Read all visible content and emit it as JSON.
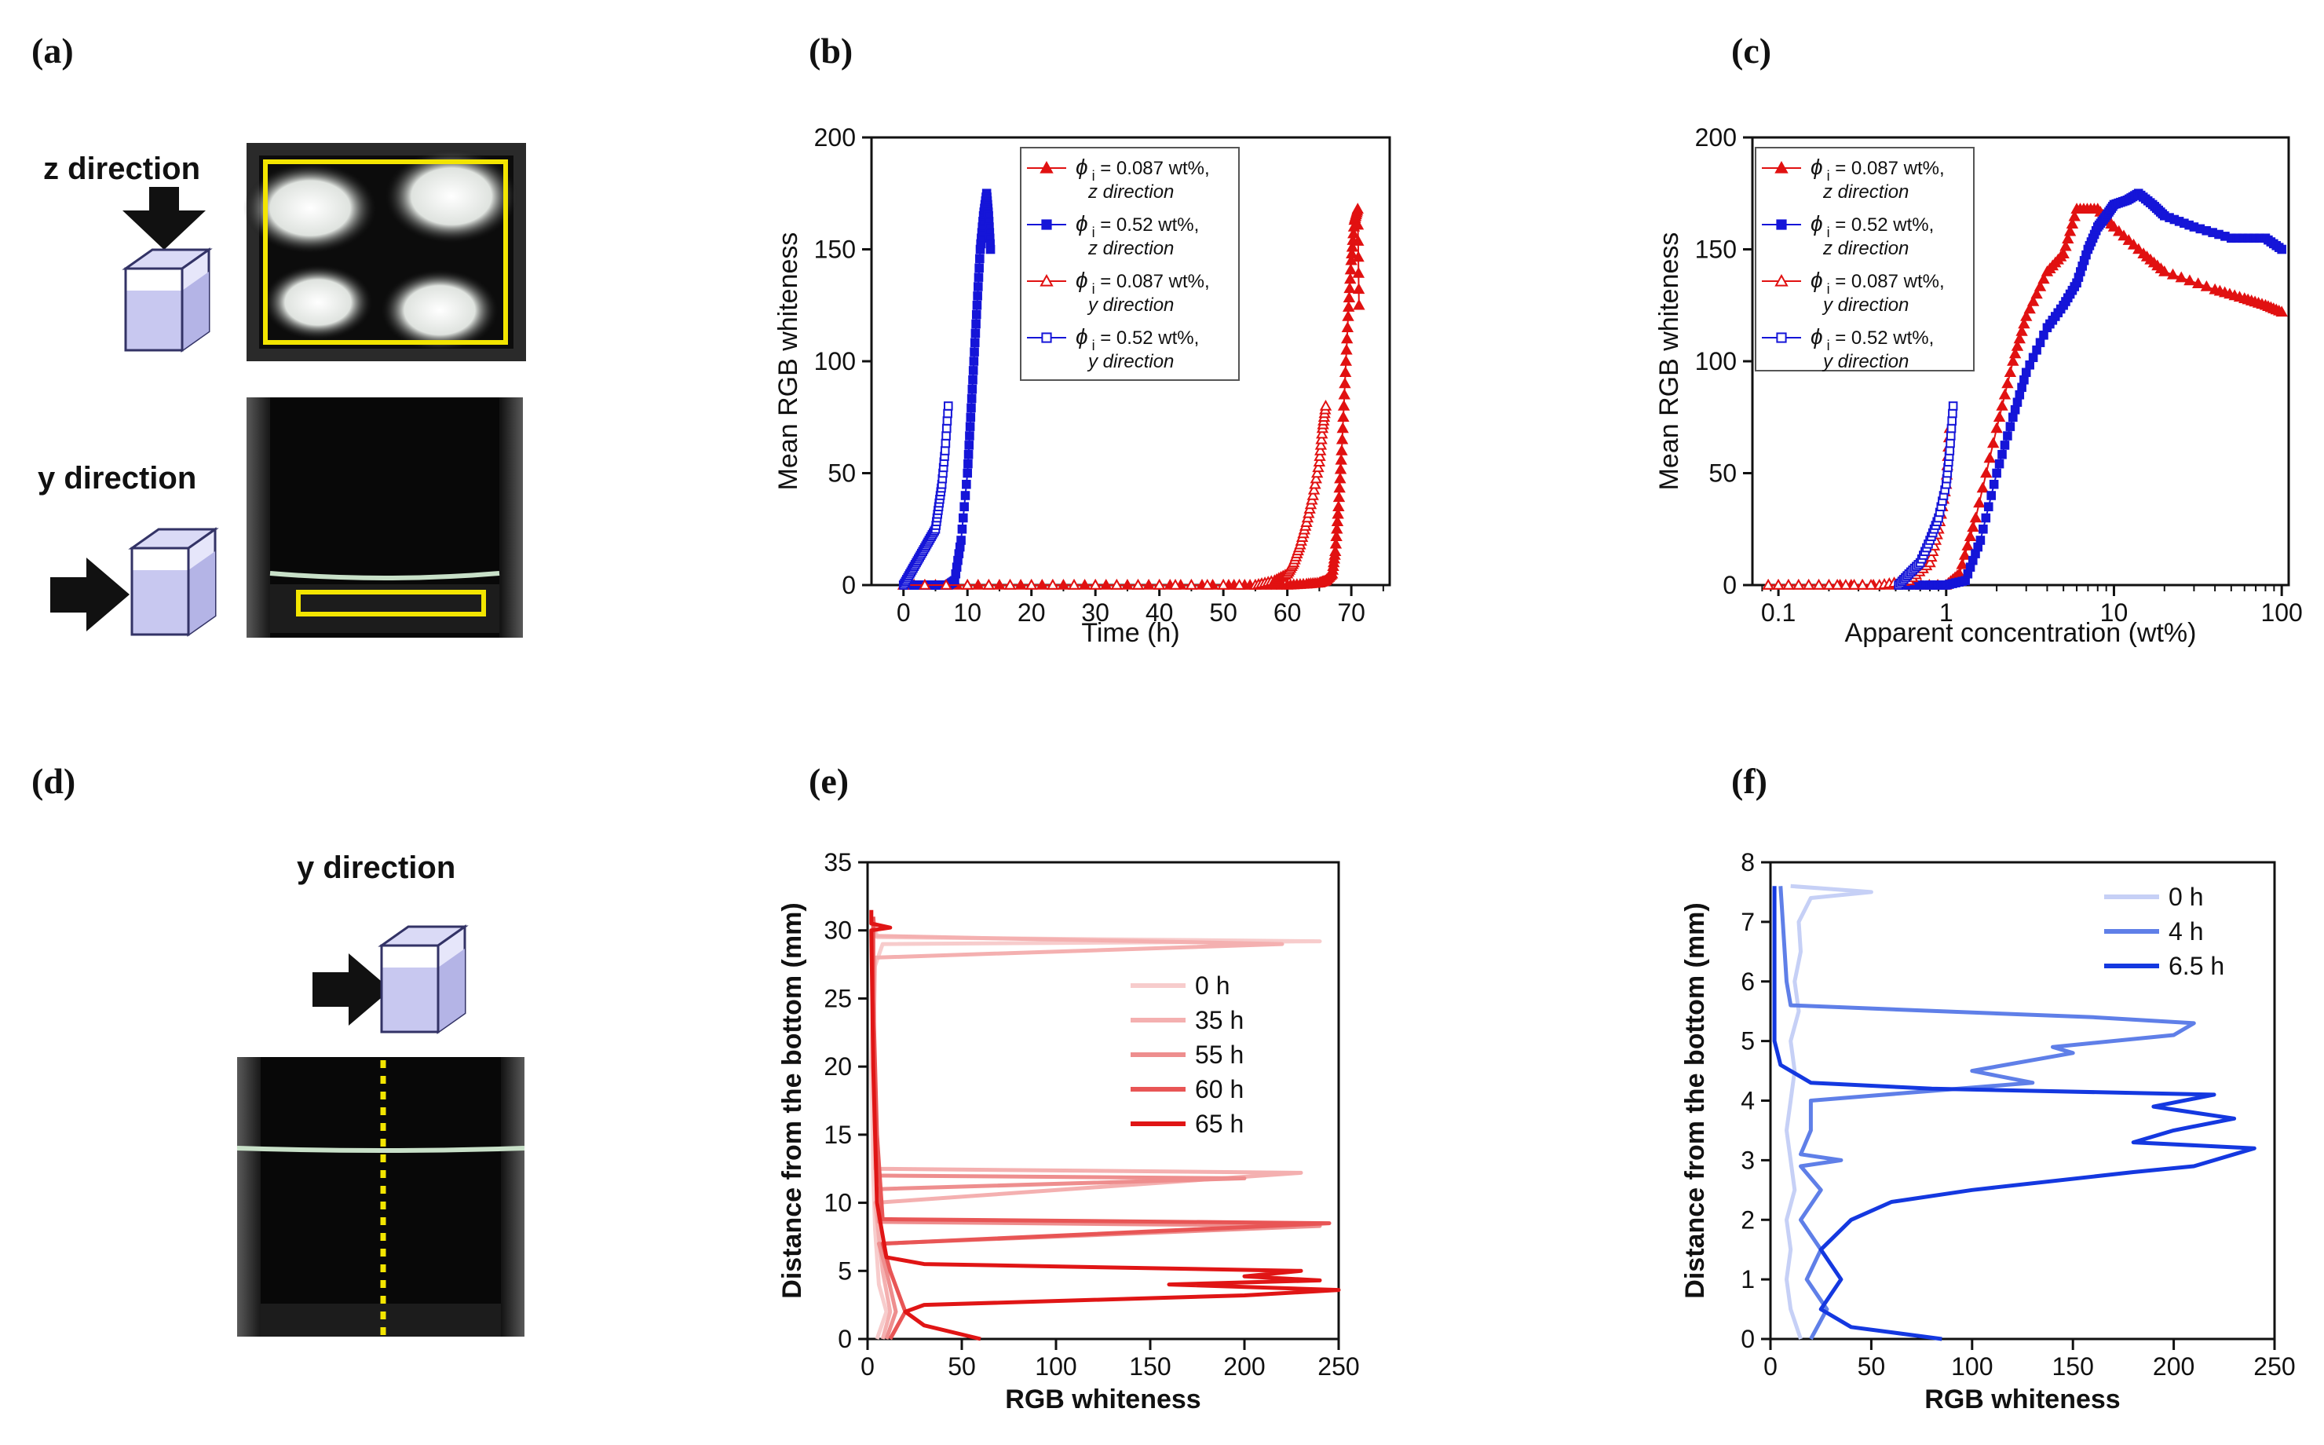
{
  "panel_labels": [
    "(a)",
    "(b)",
    "(c)",
    "(d)",
    "(e)",
    "(f)"
  ],
  "photos": {
    "a_top_label": "z direction",
    "a_bottom_label": "y direction",
    "d_label": "y direction",
    "box_color": "#c8c8f0",
    "arrow_color": "#111111",
    "highlight_color": "#f3e500"
  },
  "chart_data": [
    {
      "id": "b",
      "type": "scatter",
      "title": "",
      "xlabel": "Time (h)",
      "ylabel": "Mean RGB whiteness",
      "xlim": [
        -5,
        76
      ],
      "ylim": [
        0,
        200
      ],
      "xticks": [
        0,
        10,
        20,
        30,
        40,
        50,
        60,
        70
      ],
      "yticks": [
        0,
        50,
        100,
        150,
        200
      ],
      "legend": [
        {
          "phi": "ϕ",
          "sub": "i",
          "text": " = 0.087 wt%,",
          "dir": "z direction",
          "color": "#e11111",
          "marker": "triangle-filled"
        },
        {
          "phi": "ϕ",
          "sub": "i",
          "text": " = 0.52 wt%,",
          "dir": "z direction",
          "color": "#1515d8",
          "marker": "square-filled"
        },
        {
          "phi": "ϕ",
          "sub": "i",
          "text": " = 0.087 wt%,",
          "dir": "y direction",
          "color": "#e11111",
          "marker": "triangle-open"
        },
        {
          "phi": "ϕ",
          "sub": "i",
          "text": " = 0.52 wt%,",
          "dir": "y direction",
          "color": "#1515d8",
          "marker": "square-open"
        }
      ],
      "series": [
        {
          "name": "0.087 wt% z",
          "color": "#e11111",
          "marker": "triangle-filled",
          "x": [
            0,
            10,
            20,
            30,
            40,
            50,
            55,
            60,
            63,
            65,
            66,
            67,
            67.5,
            68,
            68.5,
            69,
            69.5,
            70,
            70.5,
            71,
            71.2
          ],
          "y": [
            0,
            0,
            0,
            0,
            0,
            0,
            0,
            0,
            0.5,
            1,
            2,
            5,
            15,
            35,
            60,
            90,
            120,
            145,
            163,
            168,
            125
          ]
        },
        {
          "name": "0.52 wt% z",
          "color": "#1515d8",
          "marker": "square-filled",
          "x": [
            0,
            2,
            4,
            6,
            7,
            8,
            9,
            10,
            10.5,
            11,
            11.5,
            12,
            12.5,
            13,
            13.3,
            13.6
          ],
          "y": [
            0,
            0,
            0,
            0,
            0,
            2,
            20,
            50,
            75,
            100,
            125,
            150,
            165,
            175,
            165,
            150
          ]
        },
        {
          "name": "0.087 wt% y",
          "color": "#e11111",
          "marker": "triangle-open",
          "x": [
            0,
            20,
            40,
            55,
            58,
            60,
            61,
            62,
            63,
            64,
            65,
            65.5,
            66
          ],
          "y": [
            0,
            0,
            0,
            0,
            2,
            5,
            10,
            18,
            28,
            40,
            55,
            70,
            80
          ]
        },
        {
          "name": "0.52 wt% y",
          "color": "#1515d8",
          "marker": "square-open",
          "x": [
            0,
            1,
            2,
            3,
            4,
            5,
            5.5,
            6,
            6.5,
            7
          ],
          "y": [
            0,
            5,
            10,
            15,
            20,
            25,
            35,
            45,
            60,
            80
          ]
        }
      ]
    },
    {
      "id": "c",
      "type": "scatter",
      "title": "",
      "xlabel": "Apparent concentration (wt%)",
      "ylabel": "Mean RGB whiteness",
      "xscale": "log",
      "xlim": [
        0.07,
        110
      ],
      "ylim": [
        0,
        200
      ],
      "xticks": [
        0.1,
        1,
        10,
        100
      ],
      "xtick_labels": [
        "0.1",
        "1",
        "10",
        "100"
      ],
      "yticks": [
        0,
        50,
        100,
        150,
        200
      ],
      "legend": [
        {
          "phi": "ϕ",
          "sub": "i",
          "text": " = 0.087 wt%,",
          "dir": "z direction",
          "color": "#e11111",
          "marker": "triangle-filled"
        },
        {
          "phi": "ϕ",
          "sub": "i",
          "text": " = 0.52 wt%,",
          "dir": "z direction",
          "color": "#1515d8",
          "marker": "square-filled"
        },
        {
          "phi": "ϕ",
          "sub": "i",
          "text": " = 0.087 wt%,",
          "dir": "y direction",
          "color": "#e11111",
          "marker": "triangle-open"
        },
        {
          "phi": "ϕ",
          "sub": "i",
          "text": " = 0.52 wt%,",
          "dir": "y direction",
          "color": "#1515d8",
          "marker": "square-open"
        }
      ],
      "series": [
        {
          "name": "0.087 wt% z",
          "color": "#e11111",
          "marker": "triangle-filled",
          "x": [
            0.087,
            0.2,
            0.5,
            1.0,
            1.2,
            1.5,
            2,
            2.5,
            3,
            4,
            5,
            6,
            8,
            10,
            15,
            20,
            40,
            60,
            80,
            100
          ],
          "y": [
            0,
            0,
            0,
            0,
            5,
            30,
            70,
            100,
            120,
            140,
            148,
            168,
            168,
            160,
            148,
            140,
            132,
            128,
            125,
            122
          ]
        },
        {
          "name": "0.52 wt% z",
          "color": "#1515d8",
          "marker": "square-filled",
          "x": [
            0.52,
            0.8,
            1.0,
            1.3,
            1.6,
            2,
            2.5,
            3,
            4,
            5,
            6,
            7,
            8,
            9,
            10,
            12,
            14,
            17,
            20,
            30,
            50,
            80,
            100
          ],
          "y": [
            0,
            0,
            0,
            2,
            20,
            50,
            75,
            95,
            115,
            125,
            135,
            150,
            160,
            165,
            170,
            172,
            175,
            170,
            165,
            160,
            155,
            155,
            150
          ]
        },
        {
          "name": "0.087 wt% y",
          "color": "#e11111",
          "marker": "triangle-open",
          "x": [
            0.087,
            0.2,
            0.4,
            0.6,
            0.8,
            0.9,
            1.0,
            1.05
          ],
          "y": [
            0,
            0,
            0,
            2,
            10,
            25,
            45,
            70
          ]
        },
        {
          "name": "0.52 wt% y",
          "color": "#1515d8",
          "marker": "square-open",
          "x": [
            0.52,
            0.6,
            0.7,
            0.8,
            0.9,
            1.0,
            1.05,
            1.1
          ],
          "y": [
            0,
            5,
            10,
            20,
            30,
            45,
            60,
            80
          ]
        }
      ]
    },
    {
      "id": "e",
      "type": "line",
      "title": "",
      "xlabel": "RGB whiteness",
      "ylabel": "Distance from the bottom (mm)",
      "xlim": [
        0,
        250
      ],
      "ylim": [
        0,
        35
      ],
      "xticks": [
        0,
        50,
        100,
        150,
        200,
        250
      ],
      "yticks": [
        0,
        5,
        10,
        15,
        20,
        25,
        30,
        35
      ],
      "legend": [
        {
          "label": "0 h",
          "color": "#f7cccc"
        },
        {
          "label": "35 h",
          "color": "#f4b0b0"
        },
        {
          "label": "55 h",
          "color": "#ee8e8e"
        },
        {
          "label": "60 h",
          "color": "#e85555"
        },
        {
          "label": "65 h",
          "color": "#e01515"
        }
      ],
      "series": [
        {
          "name": "0 h",
          "color": "#f7cccc",
          "points": [
            [
              5,
              0
            ],
            [
              10,
              2
            ],
            [
              6,
              4
            ],
            [
              4,
              8
            ],
            [
              3,
              12
            ],
            [
              2,
              20
            ],
            [
              3,
              27
            ],
            [
              8,
              29
            ],
            [
              240,
              29.2
            ],
            [
              5,
              29.5
            ],
            [
              3,
              31
            ]
          ]
        },
        {
          "name": "35 h",
          "color": "#f4b0b0",
          "points": [
            [
              8,
              0
            ],
            [
              12,
              2
            ],
            [
              8,
              5
            ],
            [
              4,
              10
            ],
            [
              230,
              12.2
            ],
            [
              4,
              12.5
            ],
            [
              3,
              20
            ],
            [
              4,
              28
            ],
            [
              220,
              29
            ],
            [
              4,
              29.6
            ],
            [
              3,
              31
            ]
          ]
        },
        {
          "name": "55 h",
          "color": "#ee8e8e",
          "points": [
            [
              10,
              0
            ],
            [
              15,
              2
            ],
            [
              10,
              5
            ],
            [
              6,
              7
            ],
            [
              240,
              8.3
            ],
            [
              6,
              8.6
            ],
            [
              5,
              11
            ],
            [
              200,
              11.8
            ],
            [
              5,
              12
            ],
            [
              3,
              25
            ],
            [
              3,
              31
            ]
          ]
        },
        {
          "name": "60 h",
          "color": "#e85555",
          "points": [
            [
              12,
              0
            ],
            [
              20,
              2
            ],
            [
              12,
              5
            ],
            [
              8,
              7
            ],
            [
              245,
              8.5
            ],
            [
              8,
              8.8
            ],
            [
              5,
              15
            ],
            [
              3,
              25
            ],
            [
              3,
              31
            ]
          ]
        },
        {
          "name": "65 h",
          "color": "#e01515",
          "points": [
            [
              60,
              0
            ],
            [
              30,
              1
            ],
            [
              20,
              2
            ],
            [
              30,
              2.5
            ],
            [
              200,
              3.2
            ],
            [
              250,
              3.6
            ],
            [
              160,
              4
            ],
            [
              240,
              4.3
            ],
            [
              200,
              4.6
            ],
            [
              230,
              5
            ],
            [
              30,
              5.5
            ],
            [
              10,
              6
            ],
            [
              5,
              10
            ],
            [
              3,
              20
            ],
            [
              2,
              30
            ],
            [
              12,
              30.2
            ],
            [
              2,
              30.5
            ],
            [
              2,
              31.5
            ]
          ]
        }
      ]
    },
    {
      "id": "f",
      "type": "line",
      "title": "",
      "xlabel": "RGB whiteness",
      "ylabel": "Distance from the bottom (mm)",
      "xlim": [
        0,
        250
      ],
      "ylim": [
        0,
        8
      ],
      "xticks": [
        0,
        50,
        100,
        150,
        200,
        250
      ],
      "yticks": [
        0,
        1,
        2,
        3,
        4,
        5,
        6,
        7,
        8
      ],
      "legend": [
        {
          "label": "0 h",
          "color": "#c6d0f6"
        },
        {
          "label": "4 h",
          "color": "#5f7fe8"
        },
        {
          "label": "6.5 h",
          "color": "#1438e0"
        }
      ],
      "series": [
        {
          "name": "0 h",
          "color": "#c6d0f6",
          "points": [
            [
              15,
              0
            ],
            [
              10,
              0.5
            ],
            [
              8,
              1
            ],
            [
              10,
              1.5
            ],
            [
              8,
              2
            ],
            [
              12,
              2.5
            ],
            [
              10,
              3
            ],
            [
              8,
              3.5
            ],
            [
              10,
              4
            ],
            [
              12,
              4.5
            ],
            [
              10,
              5
            ],
            [
              14,
              5.5
            ],
            [
              12,
              6
            ],
            [
              15,
              6.5
            ],
            [
              14,
              7
            ],
            [
              20,
              7.4
            ],
            [
              50,
              7.5
            ],
            [
              10,
              7.6
            ]
          ]
        },
        {
          "name": "4 h",
          "color": "#5f7fe8",
          "points": [
            [
              20,
              0
            ],
            [
              28,
              0.5
            ],
            [
              18,
              1
            ],
            [
              25,
              1.5
            ],
            [
              15,
              2
            ],
            [
              25,
              2.5
            ],
            [
              15,
              2.9
            ],
            [
              35,
              3
            ],
            [
              15,
              3.1
            ],
            [
              20,
              3.5
            ],
            [
              20,
              4
            ],
            [
              130,
              4.3
            ],
            [
              100,
              4.5
            ],
            [
              150,
              4.8
            ],
            [
              140,
              4.9
            ],
            [
              200,
              5.1
            ],
            [
              210,
              5.3
            ],
            [
              160,
              5.4
            ],
            [
              10,
              5.6
            ],
            [
              8,
              6
            ],
            [
              5,
              7.6
            ]
          ]
        },
        {
          "name": "6.5 h",
          "color": "#1438e0",
          "points": [
            [
              85,
              0
            ],
            [
              40,
              0.2
            ],
            [
              25,
              0.5
            ],
            [
              35,
              1
            ],
            [
              25,
              1.5
            ],
            [
              40,
              2
            ],
            [
              60,
              2.3
            ],
            [
              100,
              2.5
            ],
            [
              180,
              2.8
            ],
            [
              210,
              2.9
            ],
            [
              240,
              3.2
            ],
            [
              180,
              3.3
            ],
            [
              200,
              3.5
            ],
            [
              230,
              3.7
            ],
            [
              190,
              3.9
            ],
            [
              220,
              4.1
            ],
            [
              80,
              4.2
            ],
            [
              20,
              4.3
            ],
            [
              5,
              4.6
            ],
            [
              2,
              5
            ],
            [
              2,
              6
            ],
            [
              2,
              7.6
            ]
          ]
        }
      ]
    }
  ]
}
